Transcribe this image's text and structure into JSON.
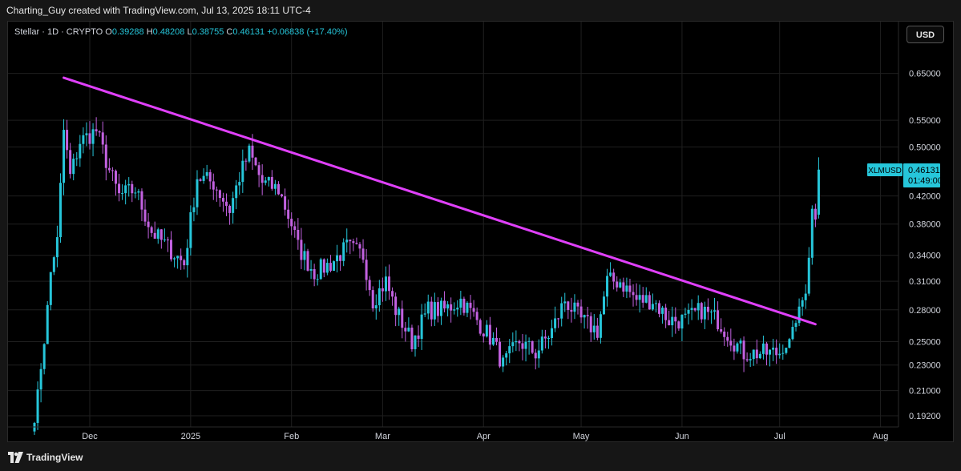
{
  "caption": "Charting_Guy created with TradingView.com, Jul 13, 2025 18:11 UTC-4",
  "legend": {
    "symbol": "Stellar · 1D · CRYPTO",
    "open_label": "O",
    "open": "0.39288",
    "high_label": "H",
    "high": "0.48208",
    "low_label": "L",
    "low": "0.38755",
    "close_label": "C",
    "close": "0.46131",
    "change": "+0.06838 (+17.40%)"
  },
  "currency_button": "USD",
  "brand": "TradingView",
  "price_tag": {
    "ticker": "XLMUSD",
    "price": "0.46131",
    "countdown": "01:49:00"
  },
  "colors": {
    "up": "#26c6da",
    "down": "#c261e0",
    "trendline": "#e040fb",
    "grid": "#1f1f1f",
    "background": "#000000",
    "tag": "#26c6da"
  },
  "chart_data": {
    "type": "candlestick",
    "title": "Stellar · 1D · CRYPTO",
    "y_scale": "log",
    "y_ticks": [
      "0.65000",
      "0.55000",
      "0.50000",
      "0.42000",
      "0.38000",
      "0.34000",
      "0.31000",
      "0.28000",
      "0.25000",
      "0.23000",
      "0.21000",
      "0.19200"
    ],
    "x_ticks": [
      "Dec",
      "2025",
      "Feb",
      "Mar",
      "Apr",
      "May",
      "Jun",
      "Jul",
      "Aug"
    ],
    "ylim": [
      0.18,
      0.75
    ],
    "grid": true,
    "last_close": 0.46131,
    "trendline": {
      "start": {
        "date": "2024-11-23",
        "price": 0.64
      },
      "end": {
        "date": "2025-07-12",
        "price": 0.266
      }
    },
    "anchors": [
      [
        "2024-11-14",
        0.19
      ],
      [
        "2024-11-17",
        0.25
      ],
      [
        "2024-11-19",
        0.32
      ],
      [
        "2024-11-21",
        0.36
      ],
      [
        "2024-11-23",
        0.53
      ],
      [
        "2024-11-25",
        0.45
      ],
      [
        "2024-11-28",
        0.51
      ],
      [
        "2024-12-03",
        0.53
      ],
      [
        "2024-12-07",
        0.46
      ],
      [
        "2024-12-10",
        0.42
      ],
      [
        "2024-12-15",
        0.43
      ],
      [
        "2024-12-20",
        0.37
      ],
      [
        "2024-12-25",
        0.35
      ],
      [
        "2024-12-30",
        0.33
      ],
      [
        "2025-01-03",
        0.45
      ],
      [
        "2025-01-08",
        0.44
      ],
      [
        "2025-01-13",
        0.4
      ],
      [
        "2025-01-16",
        0.45
      ],
      [
        "2025-01-19",
        0.49
      ],
      [
        "2025-01-23",
        0.44
      ],
      [
        "2025-01-28",
        0.43
      ],
      [
        "2025-02-01",
        0.38
      ],
      [
        "2025-02-03",
        0.35
      ],
      [
        "2025-02-08",
        0.32
      ],
      [
        "2025-02-13",
        0.33
      ],
      [
        "2025-02-18",
        0.35
      ],
      [
        "2025-02-23",
        0.34
      ],
      [
        "2025-02-26",
        0.29
      ],
      [
        "2025-03-02",
        0.31
      ],
      [
        "2025-03-05",
        0.28
      ],
      [
        "2025-03-10",
        0.25
      ],
      [
        "2025-03-15",
        0.28
      ],
      [
        "2025-03-20",
        0.28
      ],
      [
        "2025-03-25",
        0.29
      ],
      [
        "2025-03-30",
        0.27
      ],
      [
        "2025-04-04",
        0.25
      ],
      [
        "2025-04-07",
        0.23
      ],
      [
        "2025-04-12",
        0.25
      ],
      [
        "2025-04-17",
        0.24
      ],
      [
        "2025-04-22",
        0.26
      ],
      [
        "2025-04-26",
        0.29
      ],
      [
        "2025-05-01",
        0.27
      ],
      [
        "2025-05-06",
        0.26
      ],
      [
        "2025-05-09",
        0.31
      ],
      [
        "2025-05-13",
        0.31
      ],
      [
        "2025-05-18",
        0.29
      ],
      [
        "2025-05-23",
        0.29
      ],
      [
        "2025-05-28",
        0.27
      ],
      [
        "2025-06-02",
        0.27
      ],
      [
        "2025-06-07",
        0.28
      ],
      [
        "2025-06-12",
        0.27
      ],
      [
        "2025-06-17",
        0.25
      ],
      [
        "2025-06-20",
        0.24
      ],
      [
        "2025-06-22",
        0.24
      ],
      [
        "2025-06-27",
        0.24
      ],
      [
        "2025-07-01",
        0.24
      ],
      [
        "2025-07-04",
        0.25
      ],
      [
        "2025-07-06",
        0.27
      ],
      [
        "2025-07-09",
        0.3
      ],
      [
        "2025-07-10",
        0.34
      ],
      [
        "2025-07-11",
        0.4
      ],
      [
        "2025-07-12",
        0.39
      ],
      [
        "2025-07-13",
        0.46131
      ]
    ],
    "last_candle": {
      "date": "2025-07-13",
      "open": 0.39288,
      "high": 0.48208,
      "low": 0.38755,
      "close": 0.46131
    }
  }
}
